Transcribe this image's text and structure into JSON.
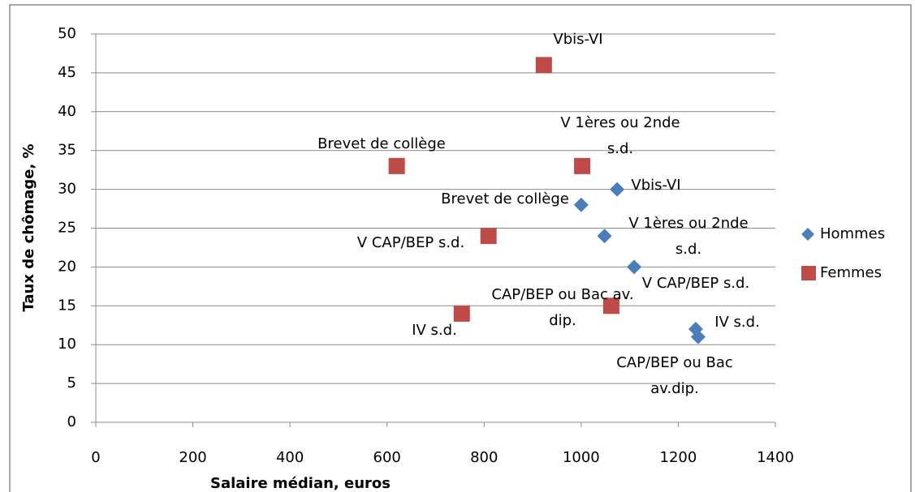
{
  "chart_data": {
    "type": "scatter",
    "xlabel": "Salaire médian, euros",
    "ylabel": "Taux de chômage, %",
    "xlim": [
      0,
      1400
    ],
    "xticks": [
      0,
      200,
      400,
      600,
      800,
      1000,
      1200,
      1400
    ],
    "ylim": [
      0,
      50
    ],
    "yticks": [
      0,
      5,
      10,
      15,
      20,
      25,
      30,
      35,
      40,
      45,
      50
    ],
    "grid": true,
    "legend": "right",
    "series": [
      {
        "name": "Hommes",
        "color": "#4a7ebb",
        "marker": "diamond",
        "x": [
          1000,
          1074,
          1048,
          1109,
          1236,
          1241
        ],
        "values": [
          28,
          30,
          24,
          20,
          12,
          11
        ],
        "labels": [
          "Brevet de collège",
          "Vbis-VI",
          "V 1ères ou 2nde s.d.",
          "V CAP/BEP s.d.",
          "IV s.d.",
          "CAP/BEP ou Bac av.dip."
        ]
      },
      {
        "name": "Femmes",
        "color": "#be4b48",
        "marker": "square",
        "x": [
          923,
          620,
          1002,
          809,
          754,
          1062
        ],
        "values": [
          46,
          33,
          33,
          24,
          14,
          15
        ],
        "labels": [
          "Vbis-VI",
          "Brevet de collège",
          "V 1ères ou 2nde s.d.",
          "V CAP/BEP s.d.",
          "IV s.d.",
          "CAP/BEP ou Bac av. dip."
        ]
      }
    ]
  }
}
